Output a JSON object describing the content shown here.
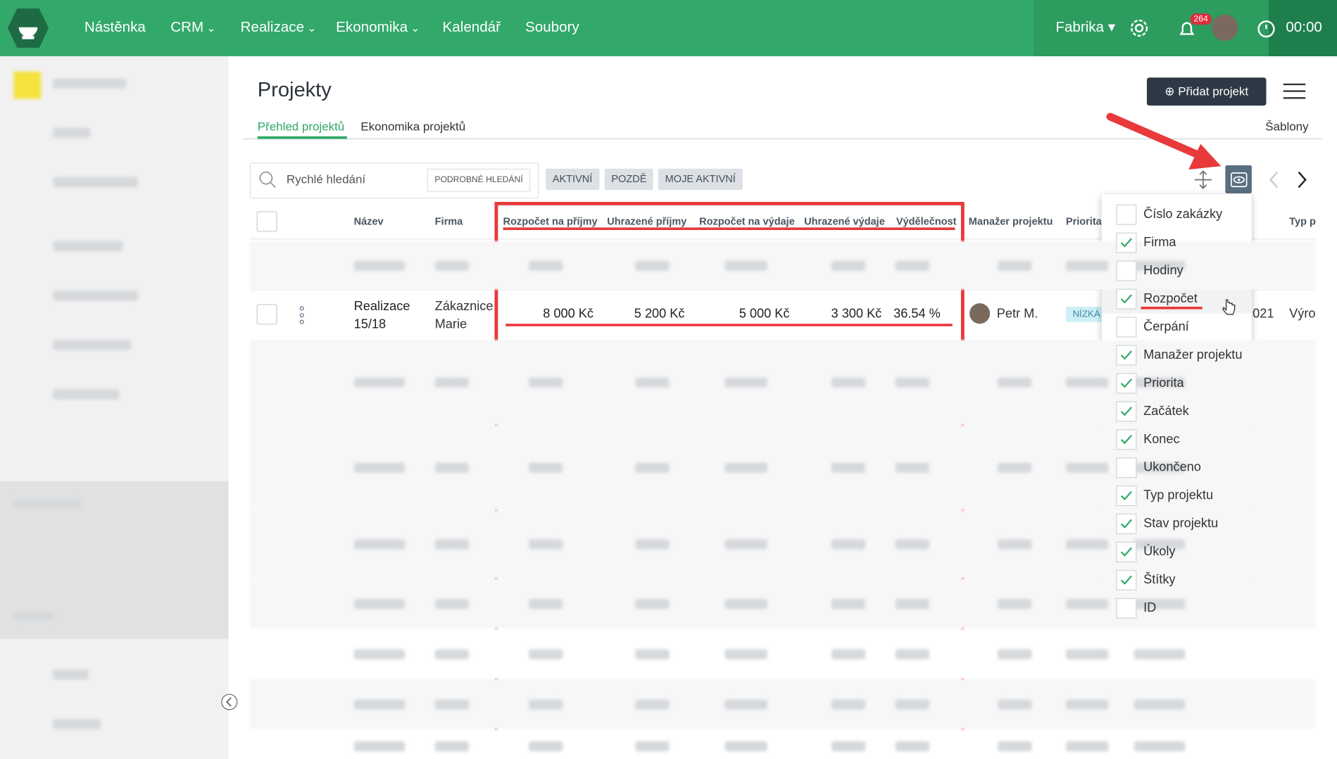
{
  "topbar": {
    "nav": [
      "Nástěnka",
      "CRM",
      "Realizace",
      "Ekonomika",
      "Kalendář",
      "Soubory"
    ],
    "dropdown_nav": [
      false,
      true,
      true,
      true,
      false,
      false
    ],
    "workspace": "Fabrika",
    "notifications": "264",
    "timer": "00:00"
  },
  "page": {
    "title": "Projekty",
    "add_button": "Přidat projekt",
    "tabs": [
      "Přehled projektů",
      "Ekonomika projektů"
    ],
    "templates": "Šablony"
  },
  "search": {
    "placeholder": "Rychlé hledání",
    "advanced": "PODROBNÉ HLEDÁNÍ",
    "filters": [
      "AKTIVNÍ",
      "POZDĚ",
      "MOJE AKTIVNÍ"
    ]
  },
  "table": {
    "headers": [
      "Název",
      "Firma",
      "Rozpočet na příjmy",
      "Uhrazené příjmy",
      "Rozpočet na výdaje",
      "Uhrazené výdaje",
      "Výdělečnost",
      "Manažer projektu",
      "Priorita",
      "Typ p"
    ],
    "row": {
      "name": "Realizace 15/18",
      "company": "Zákaznice Marie",
      "values": [
        "8 000 Kč",
        "5 200 Kč",
        "5 000 Kč",
        "3 300 Kč",
        "36.54 %"
      ],
      "manager": "Petr M.",
      "priority": "NÍZKÁ",
      "date": "021",
      "type": "Výro"
    }
  },
  "column_menu": {
    "items": [
      {
        "label": "Číslo zakázky",
        "checked": false
      },
      {
        "label": "Firma",
        "checked": true
      },
      {
        "label": "Hodiny",
        "checked": false
      },
      {
        "label": "Rozpočet",
        "checked": true
      },
      {
        "label": "Čerpání",
        "checked": false
      },
      {
        "label": "Manažer projektu",
        "checked": true
      },
      {
        "label": "Priorita",
        "checked": true
      },
      {
        "label": "Začátek",
        "checked": true
      },
      {
        "label": "Konec",
        "checked": true
      },
      {
        "label": "Ukončeno",
        "checked": false
      },
      {
        "label": "Typ projektu",
        "checked": true
      },
      {
        "label": "Stav projektu",
        "checked": true
      },
      {
        "label": "Úkoly",
        "checked": true
      },
      {
        "label": "Štítky",
        "checked": true
      },
      {
        "label": "ID",
        "checked": false
      }
    ]
  }
}
